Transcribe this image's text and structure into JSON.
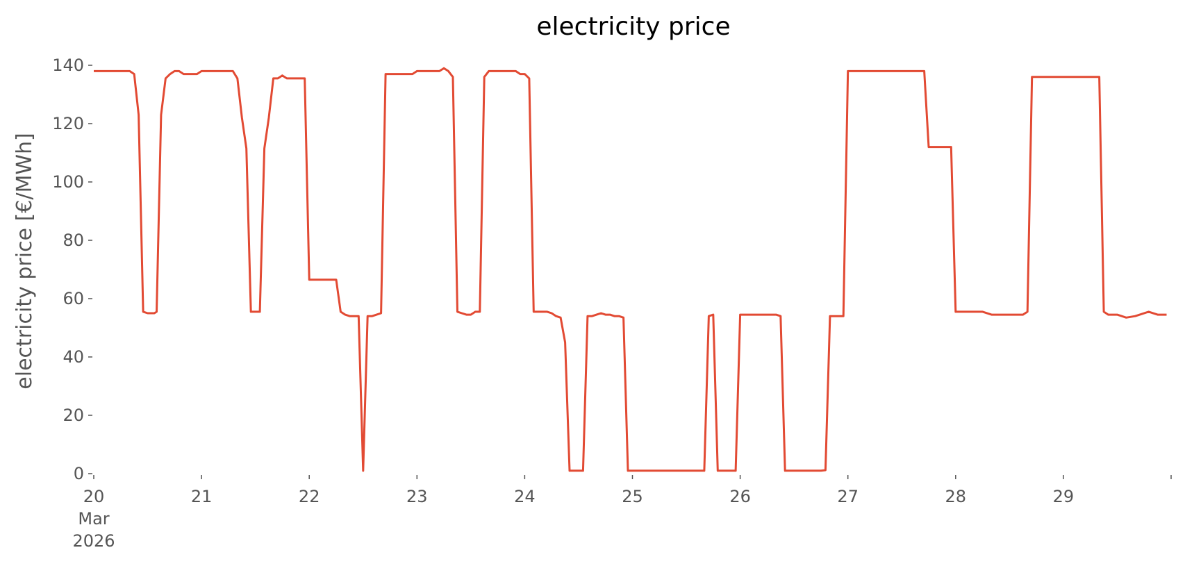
{
  "chart_data": {
    "type": "line",
    "title": "electricity price",
    "xlabel": "",
    "ylabel": "electricity price [€/MWh]",
    "ylim": [
      0,
      140
    ],
    "yticks": [
      0,
      20,
      40,
      60,
      80,
      100,
      120,
      140
    ],
    "xlim": [
      "2026-03-20T00:00",
      "2026-03-30T00:00"
    ],
    "xtick_labels": [
      {
        "date": "2026-03-20",
        "lines": [
          "20",
          "Mar",
          "2026"
        ]
      },
      {
        "date": "2026-03-21",
        "lines": [
          "21"
        ]
      },
      {
        "date": "2026-03-22",
        "lines": [
          "22"
        ]
      },
      {
        "date": "2026-03-23",
        "lines": [
          "23"
        ]
      },
      {
        "date": "2026-03-24",
        "lines": [
          "24"
        ]
      },
      {
        "date": "2026-03-25",
        "lines": [
          "25"
        ]
      },
      {
        "date": "2026-03-26",
        "lines": [
          "26"
        ]
      },
      {
        "date": "2026-03-27",
        "lines": [
          "27"
        ]
      },
      {
        "date": "2026-03-28",
        "lines": [
          "28"
        ]
      },
      {
        "date": "2026-03-29",
        "lines": [
          "29"
        ]
      }
    ],
    "grid": false,
    "series": [
      {
        "color": "#e24a33",
        "points": [
          [
            "2026-03-20T00:00",
            138
          ],
          [
            "2026-03-20T08:00",
            138
          ],
          [
            "2026-03-20T09:00",
            137
          ],
          [
            "2026-03-20T10:00",
            123
          ],
          [
            "2026-03-20T11:00",
            55.5
          ],
          [
            "2026-03-20T12:00",
            55
          ],
          [
            "2026-03-20T13:30",
            55
          ],
          [
            "2026-03-20T14:00",
            55.5
          ],
          [
            "2026-03-20T15:00",
            123
          ],
          [
            "2026-03-20T16:00",
            135.5
          ],
          [
            "2026-03-20T17:00",
            137
          ],
          [
            "2026-03-20T18:00",
            138
          ],
          [
            "2026-03-20T19:00",
            138
          ],
          [
            "2026-03-20T20:00",
            137
          ],
          [
            "2026-03-20T22:00",
            137
          ],
          [
            "2026-03-20T23:00",
            137
          ],
          [
            "2026-03-21T00:00",
            138
          ],
          [
            "2026-03-21T07:00",
            138
          ],
          [
            "2026-03-21T08:00",
            135.5
          ],
          [
            "2026-03-21T09:00",
            122
          ],
          [
            "2026-03-21T10:00",
            111.5
          ],
          [
            "2026-03-21T11:00",
            55.5
          ],
          [
            "2026-03-21T13:00",
            55.5
          ],
          [
            "2026-03-21T14:00",
            111.5
          ],
          [
            "2026-03-21T15:00",
            122
          ],
          [
            "2026-03-21T16:00",
            135.5
          ],
          [
            "2026-03-21T17:00",
            135.5
          ],
          [
            "2026-03-21T18:00",
            136.5
          ],
          [
            "2026-03-21T19:00",
            135.5
          ],
          [
            "2026-03-21T23:00",
            135.5
          ],
          [
            "2026-03-22T00:00",
            66.5
          ],
          [
            "2026-03-22T06:00",
            66.5
          ],
          [
            "2026-03-22T07:00",
            55.5
          ],
          [
            "2026-03-22T08:00",
            54.5
          ],
          [
            "2026-03-22T09:00",
            54
          ],
          [
            "2026-03-22T11:00",
            54
          ],
          [
            "2026-03-22T12:00",
            1
          ],
          [
            "2026-03-22T13:00",
            54
          ],
          [
            "2026-03-22T14:00",
            54
          ],
          [
            "2026-03-22T15:00",
            54.5
          ],
          [
            "2026-03-22T16:00",
            55
          ],
          [
            "2026-03-22T17:00",
            137
          ],
          [
            "2026-03-22T23:00",
            137
          ],
          [
            "2026-03-23T00:00",
            138
          ],
          [
            "2026-03-23T05:00",
            138
          ],
          [
            "2026-03-23T06:00",
            139
          ],
          [
            "2026-03-23T07:00",
            138
          ],
          [
            "2026-03-23T08:00",
            136
          ],
          [
            "2026-03-23T09:00",
            55.5
          ],
          [
            "2026-03-23T10:00",
            55
          ],
          [
            "2026-03-23T11:00",
            54.5
          ],
          [
            "2026-03-23T12:00",
            54.5
          ],
          [
            "2026-03-23T13:00",
            55.5
          ],
          [
            "2026-03-23T14:00",
            55.5
          ],
          [
            "2026-03-23T15:00",
            136
          ],
          [
            "2026-03-23T16:00",
            138
          ],
          [
            "2026-03-23T22:00",
            138
          ],
          [
            "2026-03-23T23:00",
            137
          ],
          [
            "2026-03-24T00:00",
            137
          ],
          [
            "2026-03-24T01:00",
            135.5
          ],
          [
            "2026-03-24T02:00",
            55.5
          ],
          [
            "2026-03-24T05:00",
            55.5
          ],
          [
            "2026-03-24T06:00",
            55
          ],
          [
            "2026-03-24T07:00",
            54
          ],
          [
            "2026-03-24T08:00",
            53.5
          ],
          [
            "2026-03-24T09:00",
            45
          ],
          [
            "2026-03-24T10:00",
            1
          ],
          [
            "2026-03-24T13:00",
            1
          ],
          [
            "2026-03-24T14:00",
            54
          ],
          [
            "2026-03-24T15:00",
            54
          ],
          [
            "2026-03-24T16:00",
            54.5
          ],
          [
            "2026-03-24T17:00",
            55
          ],
          [
            "2026-03-24T18:00",
            54.5
          ],
          [
            "2026-03-24T19:00",
            54.5
          ],
          [
            "2026-03-24T20:00",
            54
          ],
          [
            "2026-03-24T21:00",
            54
          ],
          [
            "2026-03-24T22:00",
            53.5
          ],
          [
            "2026-03-24T23:00",
            1
          ],
          [
            "2026-03-25T16:00",
            1
          ],
          [
            "2026-03-25T17:00",
            54
          ],
          [
            "2026-03-25T18:00",
            54.5
          ],
          [
            "2026-03-25T19:00",
            1
          ],
          [
            "2026-03-25T23:00",
            1
          ],
          [
            "2026-03-26T00:00",
            54.5
          ],
          [
            "2026-03-26T08:00",
            54.5
          ],
          [
            "2026-03-26T09:00",
            54
          ],
          [
            "2026-03-26T10:00",
            1
          ],
          [
            "2026-03-26T18:00",
            1
          ],
          [
            "2026-03-26T19:00",
            1.2
          ],
          [
            "2026-03-26T20:00",
            54
          ],
          [
            "2026-03-26T23:00",
            54
          ],
          [
            "2026-03-27T00:00",
            138
          ],
          [
            "2026-03-27T17:00",
            138
          ],
          [
            "2026-03-27T18:00",
            112
          ],
          [
            "2026-03-27T23:00",
            112
          ],
          [
            "2026-03-28T00:00",
            55.5
          ],
          [
            "2026-03-28T06:00",
            55.5
          ],
          [
            "2026-03-28T08:00",
            54.5
          ],
          [
            "2026-03-28T15:00",
            54.5
          ],
          [
            "2026-03-28T16:00",
            55.5
          ],
          [
            "2026-03-28T17:00",
            136
          ],
          [
            "2026-03-29T08:00",
            136
          ],
          [
            "2026-03-29T09:00",
            55.5
          ],
          [
            "2026-03-29T10:00",
            54.5
          ],
          [
            "2026-03-29T12:00",
            54.5
          ],
          [
            "2026-03-29T14:00",
            53.5
          ],
          [
            "2026-03-29T16:00",
            54
          ],
          [
            "2026-03-29T19:00",
            55.5
          ],
          [
            "2026-03-29T21:00",
            54.5
          ],
          [
            "2026-03-29T23:00",
            54.5
          ]
        ]
      }
    ]
  }
}
